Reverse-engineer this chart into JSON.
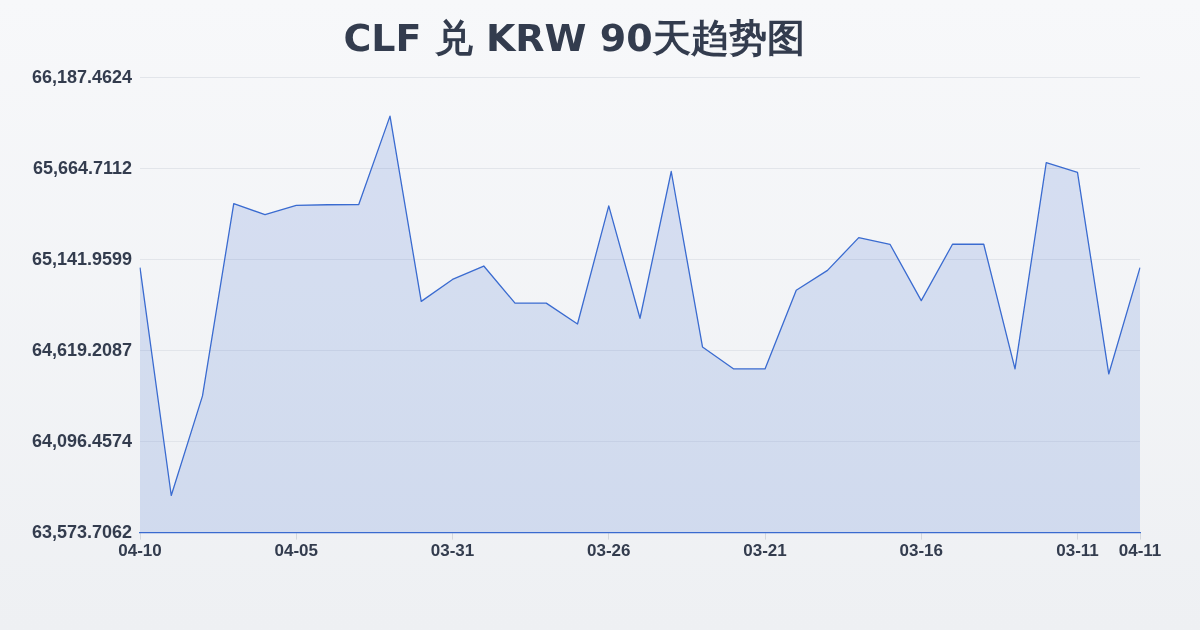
{
  "chart_data": {
    "type": "area",
    "title": "CLF 兑 KRW 90天趋势图",
    "categories": [
      "04-10",
      null,
      null,
      null,
      null,
      "04-05",
      null,
      null,
      null,
      null,
      "03-31",
      null,
      null,
      null,
      null,
      "03-26",
      null,
      null,
      null,
      null,
      "03-21",
      null,
      null,
      null,
      null,
      "03-16",
      null,
      null,
      null,
      null,
      "03-11",
      null,
      "04-11"
    ],
    "values": [
      65096,
      63787,
      64359,
      65464,
      65400,
      65453,
      65457,
      65458,
      65966,
      64902,
      65028,
      65105,
      64892,
      64892,
      64772,
      65451,
      64805,
      65648,
      64640,
      64514,
      64514,
      64966,
      65080,
      65268,
      65230,
      64906,
      65230,
      65230,
      64514,
      65699,
      65643,
      64485,
      65096
    ],
    "color": "#3a6bd0",
    "ylim": [
      63573.7062,
      66187.4624
    ],
    "yticks": [
      {
        "value": 63573.7062,
        "label": "63,573.7062"
      },
      {
        "value": 64096.4574,
        "label": "64,096.4574"
      },
      {
        "value": 64619.2087,
        "label": "64,619.2087"
      },
      {
        "value": 65141.9599,
        "label": "65,141.9599"
      },
      {
        "value": 65664.7112,
        "label": "65,664.7112"
      },
      {
        "value": 66187.4624,
        "label": "66,187.4624"
      }
    ],
    "grid": "y",
    "marker": "none",
    "line_style": "solid"
  }
}
